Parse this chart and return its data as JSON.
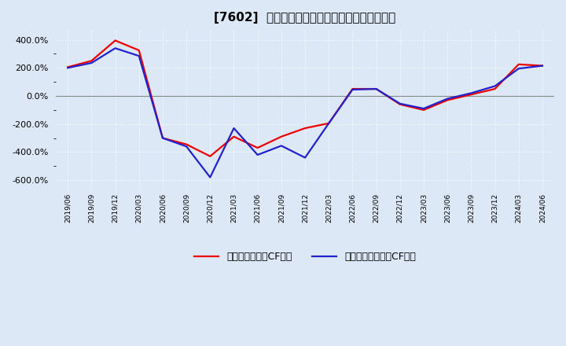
{
  "title": "[7602]  有利子負債キャッシュフロー比率の推移",
  "legend_red": "有利子負債営業CF比率",
  "legend_blue": "有利子負債フリーCF比率",
  "ylim": [
    -680,
    470
  ],
  "yticks": [
    -600,
    -400,
    -200,
    0,
    200,
    400
  ],
  "background_color": "#dce8f5",
  "grid_color": "#ffffff",
  "line_color_red": "#ee0000",
  "line_color_blue": "#2222cc",
  "x_labels": [
    "2019/06",
    "2019/09",
    "2019/12",
    "2020/03",
    "2020/06",
    "2020/09",
    "2020/12",
    "2021/03",
    "2021/06",
    "2021/09",
    "2021/12",
    "2022/03",
    "2022/06",
    "2022/09",
    "2022/12",
    "2023/03",
    "2023/06",
    "2023/09",
    "2023/12",
    "2024/03",
    "2024/06"
  ],
  "red_values": [
    205,
    250,
    395,
    325,
    -300,
    -345,
    -430,
    -290,
    -370,
    -290,
    -230,
    -195,
    50,
    50,
    -60,
    -100,
    -30,
    10,
    50,
    225,
    215
  ],
  "blue_values": [
    200,
    235,
    340,
    285,
    -300,
    -360,
    -580,
    -230,
    -420,
    -355,
    -440,
    -195,
    45,
    50,
    -55,
    -90,
    -20,
    20,
    70,
    195,
    215
  ]
}
